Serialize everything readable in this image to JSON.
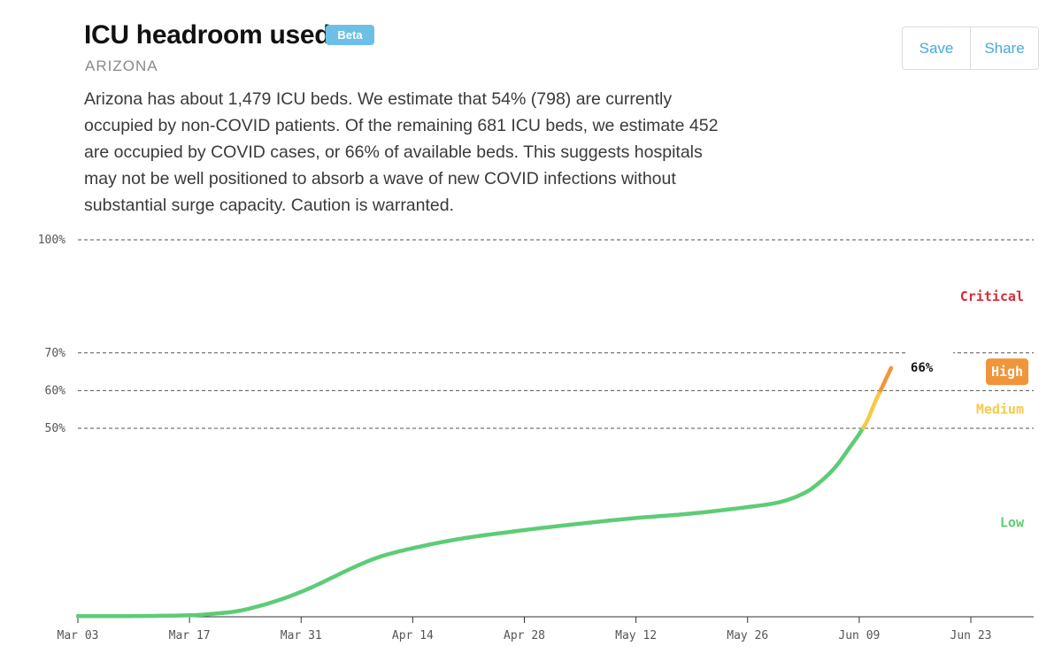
{
  "header": {
    "title": "ICU headroom used",
    "badge": "Beta",
    "location": "ARIZONA",
    "description": "Arizona has about 1,479 ICU beds. We estimate that 54% (798) are currently occupied by non-COVID patients. Of the remaining 681 ICU beds, we estimate 452 are occupied by COVID cases, or 66% of available beds. This suggests hospitals may not be well positioned to absorb a wave of new COVID infections without substantial surge capacity. Caution is warranted."
  },
  "actions": {
    "save_label": "Save",
    "share_label": "Share"
  },
  "chart_data": {
    "type": "line",
    "x_axis": {
      "type": "date",
      "range": [
        "2020-03-03",
        "2020-06-29"
      ],
      "ticks": [
        {
          "date": "2020-03-03",
          "label": "Mar 03"
        },
        {
          "date": "2020-03-17",
          "label": "Mar 17"
        },
        {
          "date": "2020-03-31",
          "label": "Mar 31"
        },
        {
          "date": "2020-04-14",
          "label": "Apr 14"
        },
        {
          "date": "2020-04-28",
          "label": "Apr 28"
        },
        {
          "date": "2020-05-12",
          "label": "May 12"
        },
        {
          "date": "2020-05-26",
          "label": "May 26"
        },
        {
          "date": "2020-06-09",
          "label": "Jun 09"
        },
        {
          "date": "2020-06-23",
          "label": "Jun 23"
        }
      ]
    },
    "y_axis": {
      "unit": "%",
      "range": [
        0,
        100
      ],
      "ticks": [
        {
          "value": 50,
          "label": "50%"
        },
        {
          "value": 60,
          "label": "60%"
        },
        {
          "value": 70,
          "label": "70%"
        },
        {
          "value": 100,
          "label": "100%"
        }
      ],
      "gridlines": "dashed"
    },
    "zones": [
      {
        "label": "Low",
        "from": 0,
        "to": 50,
        "color": "#5dcc76"
      },
      {
        "label": "Medium",
        "from": 50,
        "to": 60,
        "color": "#f7c948"
      },
      {
        "label": "High",
        "from": 60,
        "to": 70,
        "color": "#f0953a",
        "highlighted": true
      },
      {
        "label": "Critical",
        "from": 70,
        "to": 100,
        "color": "#d62c38"
      }
    ],
    "series": [
      {
        "points": [
          {
            "x": "2020-03-03",
            "y": 0.2
          },
          {
            "x": "2020-03-10",
            "y": 0.2
          },
          {
            "x": "2020-03-17",
            "y": 0.4
          },
          {
            "x": "2020-03-20",
            "y": 0.8
          },
          {
            "x": "2020-03-23",
            "y": 1.5
          },
          {
            "x": "2020-03-26",
            "y": 3.0
          },
          {
            "x": "2020-03-29",
            "y": 5.0
          },
          {
            "x": "2020-04-01",
            "y": 7.5
          },
          {
            "x": "2020-04-04",
            "y": 10.5
          },
          {
            "x": "2020-04-07",
            "y": 13.5
          },
          {
            "x": "2020-04-10",
            "y": 16.0
          },
          {
            "x": "2020-04-14",
            "y": 18.2
          },
          {
            "x": "2020-04-20",
            "y": 20.7
          },
          {
            "x": "2020-04-28",
            "y": 23.0
          },
          {
            "x": "2020-05-05",
            "y": 24.7
          },
          {
            "x": "2020-05-12",
            "y": 26.2
          },
          {
            "x": "2020-05-19",
            "y": 27.4
          },
          {
            "x": "2020-05-26",
            "y": 29.1
          },
          {
            "x": "2020-05-30",
            "y": 30.4
          },
          {
            "x": "2020-06-02",
            "y": 32.7
          },
          {
            "x": "2020-06-04",
            "y": 35.6
          },
          {
            "x": "2020-06-06",
            "y": 39.7
          },
          {
            "x": "2020-06-08",
            "y": 45.5
          },
          {
            "x": "2020-06-09",
            "y": 48.5
          },
          {
            "x": "2020-06-10",
            "y": 52.0
          },
          {
            "x": "2020-06-11",
            "y": 57.0
          },
          {
            "x": "2020-06-12",
            "y": 61.5
          },
          {
            "x": "2020-06-13",
            "y": 66.0
          }
        ]
      }
    ],
    "latest_label": "66%"
  }
}
